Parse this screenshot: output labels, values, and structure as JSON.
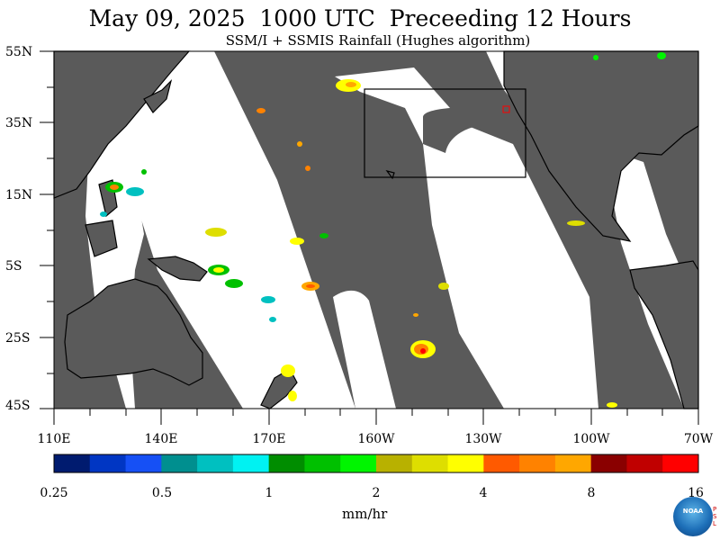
{
  "title": "May 09, 2025  1000 UTC  Preceeding 12 Hours",
  "subtitle": "SSM/I + SSMIS Rainfall (Hughes algorithm)",
  "lat_labels": [
    "55N",
    "35N",
    "15N",
    "5S",
    "25S",
    "45S"
  ],
  "lon_labels": [
    "110E",
    "140E",
    "170E",
    "160W",
    "130W",
    "100W",
    "70W"
  ],
  "colorbar": {
    "ticks": [
      "0.25",
      "0.5",
      "1",
      "2",
      "4",
      "8",
      "16"
    ],
    "units": "mm/hr",
    "colors": [
      "#001b6f",
      "#0036c3",
      "#1650f5",
      "#008f8f",
      "#00c0c0",
      "#00f2f2",
      "#008d00",
      "#00c000",
      "#00f500",
      "#b8b100",
      "#dede00",
      "#ffff00",
      "#ff5a00",
      "#ff8200",
      "#ffa700",
      "#8a0000",
      "#c00000",
      "#ff0000"
    ]
  },
  "colors": {
    "land": "#5a5a5a",
    "nodata": "#5a5a5a",
    "ocean_covered": "#ffffff"
  },
  "logo": {
    "text": "NOAA",
    "side_text": "PSL"
  }
}
